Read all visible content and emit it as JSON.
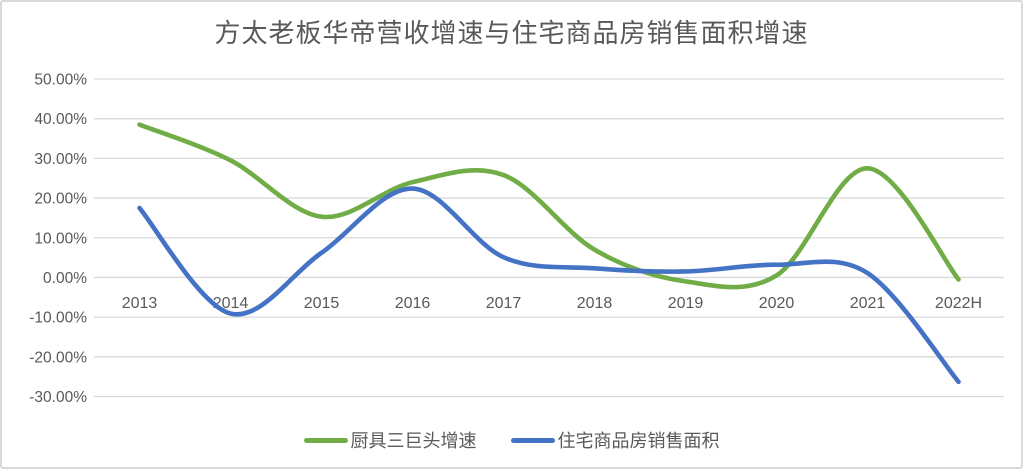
{
  "window": {
    "background": "#ffffff",
    "border_color": "#d9d9d9",
    "text_color": "#595959",
    "gridline_color": "#d9d9d9"
  },
  "chart_data": {
    "type": "line",
    "title": "方太老板华帝营收增速与住宅商品房销售面积增速",
    "smoothed": true,
    "grid": "horizontal",
    "legend_position": "bottom",
    "categories": [
      "2013",
      "2014",
      "2015",
      "2016",
      "2017",
      "2018",
      "2019",
      "2020",
      "2021",
      "2022H"
    ],
    "series": [
      {
        "name": "厨具三巨头增速",
        "color": "#70AD47",
        "values": [
          38.5,
          29.5,
          15.3,
          24.0,
          25.8,
          7.0,
          -1.0,
          0.5,
          27.5,
          -0.5
        ]
      },
      {
        "name": "住宅商品房销售面积",
        "color": "#4472C4",
        "values": [
          17.5,
          -9.1,
          6.2,
          22.4,
          5.1,
          2.3,
          1.5,
          3.2,
          1.1,
          -26.3
        ]
      }
    ],
    "ylim": [
      -30,
      50
    ],
    "ytick_step": 10,
    "ytick_labels": [
      "50.00%",
      "40.00%",
      "30.00%",
      "20.00%",
      "10.00%",
      "0.00%",
      "-10.00%",
      "-20.00%",
      "-30.00%"
    ],
    "ytick_values": [
      50,
      40,
      30,
      20,
      10,
      0,
      -10,
      -20,
      -30
    ],
    "xlabel": "",
    "ylabel": ""
  }
}
